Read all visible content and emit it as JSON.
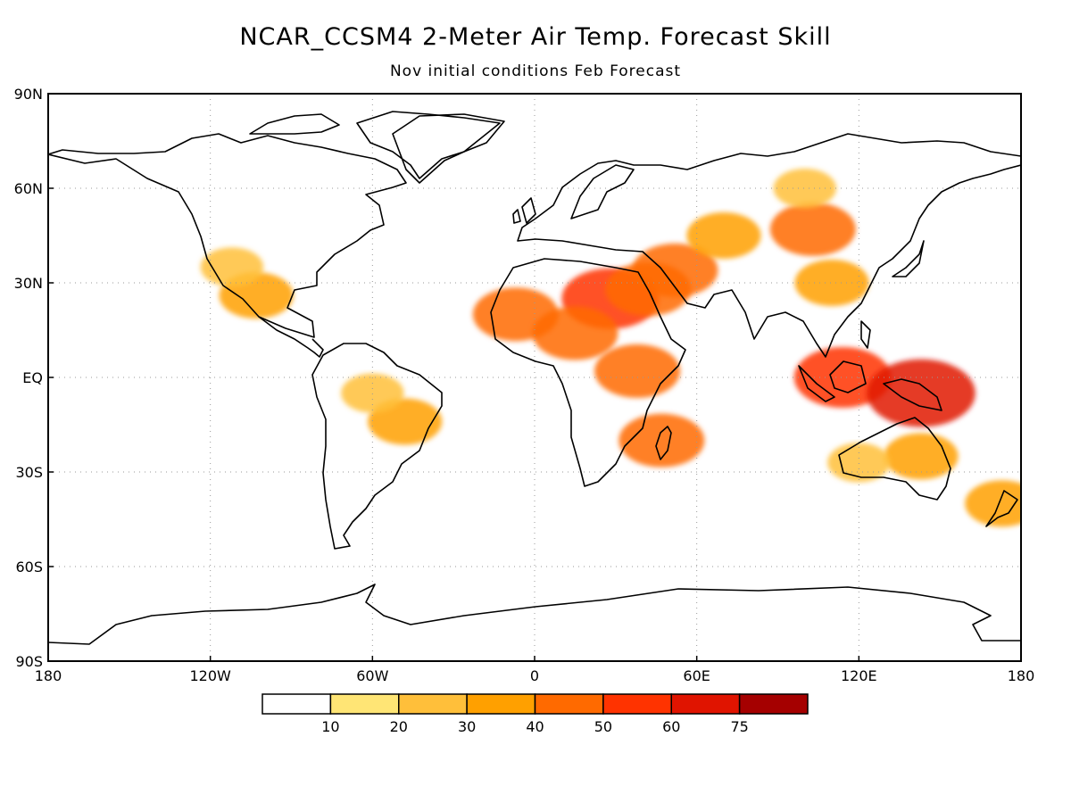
{
  "title": "NCAR_CCSM4 2-Meter Air Temp. Forecast Skill",
  "subtitle": "Nov initial conditions  Feb Forecast",
  "map": {
    "projection": "equirectangular",
    "lon_range": [
      -180,
      180
    ],
    "lat_range": [
      -90,
      90
    ],
    "grid": true,
    "x_ticks": [
      {
        "lon": -180,
        "label": "180"
      },
      {
        "lon": -120,
        "label": "120W"
      },
      {
        "lon": -60,
        "label": "60W"
      },
      {
        "lon": 0,
        "label": "0"
      },
      {
        "lon": 60,
        "label": "60E"
      },
      {
        "lon": 120,
        "label": "120E"
      },
      {
        "lon": 180,
        "label": "180"
      }
    ],
    "y_ticks": [
      {
        "lat": 90,
        "label": "90N"
      },
      {
        "lat": 60,
        "label": "60N"
      },
      {
        "lat": 30,
        "label": "30N"
      },
      {
        "lat": 0,
        "label": "EQ"
      },
      {
        "lat": -30,
        "label": "30S"
      },
      {
        "lat": -60,
        "label": "60S"
      },
      {
        "lat": -90,
        "label": "90S"
      }
    ]
  },
  "colorbar": {
    "levels": [
      "10",
      "20",
      "30",
      "40",
      "50",
      "60",
      "75"
    ],
    "colors": [
      "#ffffff",
      "#ffe575",
      "#ffbf3a",
      "#ffa000",
      "#ff6a00",
      "#ff3300",
      "#e01400",
      "#a50000"
    ]
  },
  "skill_regions": [
    {
      "name": "mexico",
      "level": 3,
      "lon": -103,
      "lat": 26
    },
    {
      "name": "us-southwest",
      "level": 2,
      "lon": -112,
      "lat": 35
    },
    {
      "name": "brazil",
      "level": 3,
      "lon": -48,
      "lat": -14
    },
    {
      "name": "amazon",
      "level": 2,
      "lon": -60,
      "lat": -5
    },
    {
      "name": "sahara-west",
      "level": 4,
      "lon": -7,
      "lat": 20
    },
    {
      "name": "egypt",
      "level": 5,
      "lon": 28,
      "lat": 25
    },
    {
      "name": "sahel",
      "level": 4,
      "lon": 15,
      "lat": 14
    },
    {
      "name": "east-africa",
      "level": 4,
      "lon": 38,
      "lat": 2
    },
    {
      "name": "madagascar",
      "level": 4,
      "lon": 47,
      "lat": -20
    },
    {
      "name": "arabia",
      "level": 4,
      "lon": 42,
      "lat": 28
    },
    {
      "name": "iran",
      "level": 4,
      "lon": 52,
      "lat": 34
    },
    {
      "name": "central-asia",
      "level": 3,
      "lon": 70,
      "lat": 45
    },
    {
      "name": "mongolia",
      "level": 4,
      "lon": 103,
      "lat": 47
    },
    {
      "name": "siberia",
      "level": 2,
      "lon": 100,
      "lat": 60
    },
    {
      "name": "china",
      "level": 3,
      "lon": 110,
      "lat": 30
    },
    {
      "name": "borneo",
      "level": 5,
      "lon": 114,
      "lat": 0
    },
    {
      "name": "new-guinea",
      "level": 6,
      "lon": 143,
      "lat": -5
    },
    {
      "name": "australia-east",
      "level": 3,
      "lon": 143,
      "lat": -25
    },
    {
      "name": "australia-west",
      "level": 2,
      "lon": 120,
      "lat": -27
    },
    {
      "name": "new-zealand",
      "level": 3,
      "lon": 173,
      "lat": -40
    }
  ]
}
